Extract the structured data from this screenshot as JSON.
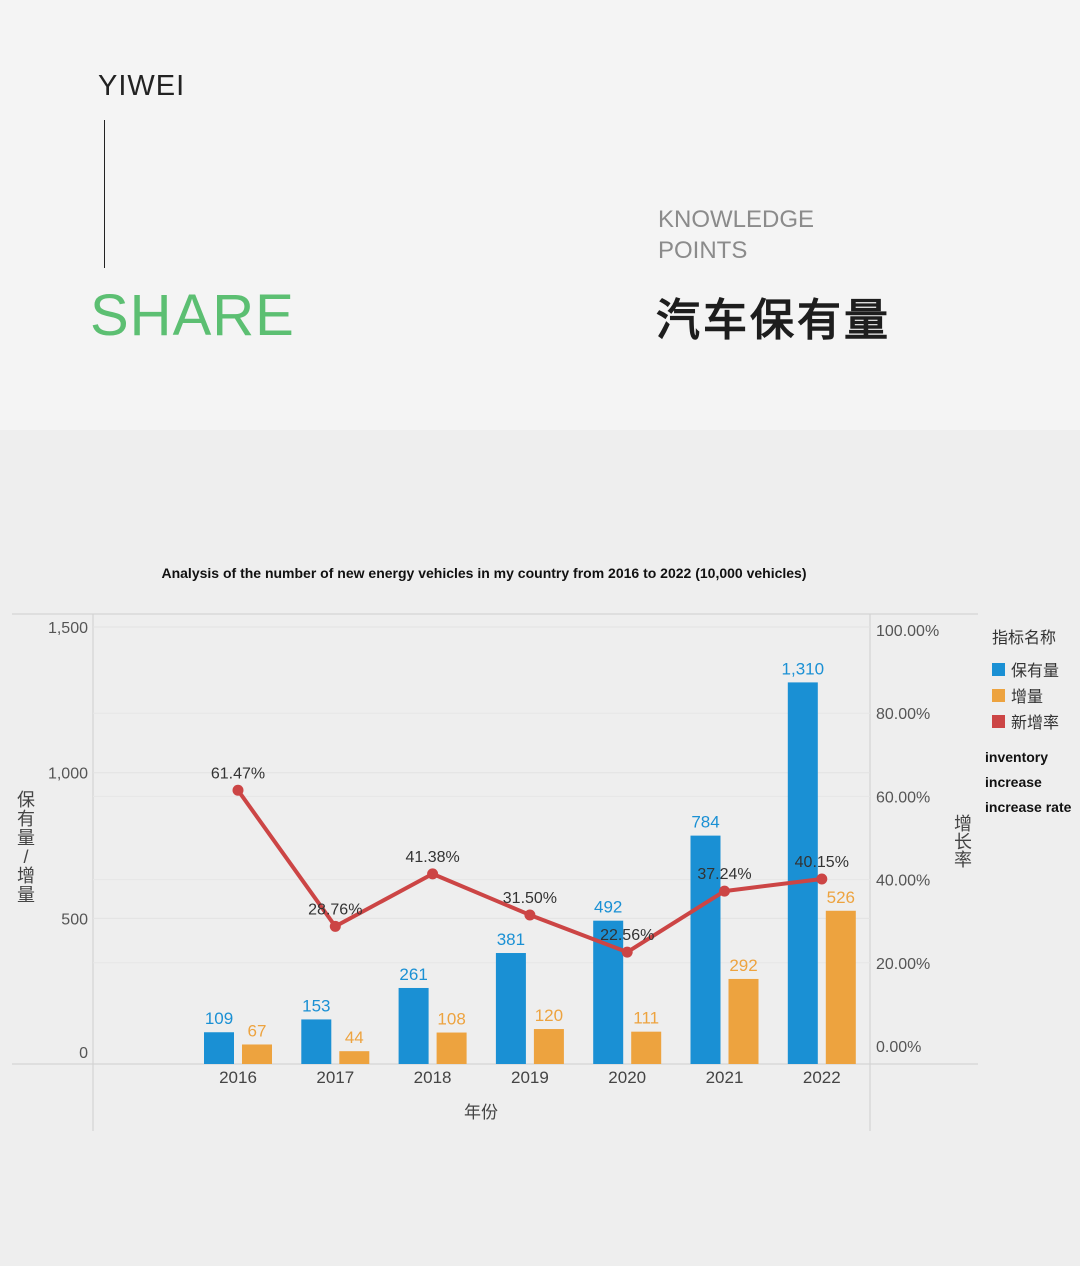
{
  "header": {
    "brand": "YIWEI",
    "share": "SHARE",
    "knowledge": "KNOWLEDGE",
    "points": "POINTS",
    "cn_title": "汽车保有量"
  },
  "colors": {
    "share": "#5cbf72",
    "inventory": "#1a90d4",
    "increase": "#eda33f",
    "rate": "#cc4545"
  },
  "chart_data": {
    "type": "bar",
    "title": "Analysis of the number of new energy vehicles in my country from 2016 to 2022 (10,000 vehicles)",
    "categories": [
      "2016",
      "2017",
      "2018",
      "2019",
      "2020",
      "2021",
      "2022"
    ],
    "xlabel": "年份",
    "ylabel": "保有量/增量",
    "y2label": "增长率",
    "ylim": [
      0,
      1500
    ],
    "y2lim": [
      0,
      100
    ],
    "yticks": [
      "1,500",
      "1,000",
      "500",
      "0"
    ],
    "y2ticks": [
      "100.00%",
      "80.00%",
      "60.00%",
      "40.00%",
      "20.00%",
      "0.00%"
    ],
    "legend_title": "指标名称",
    "series": [
      {
        "name": "保有量",
        "type": "bar",
        "values": [
          109,
          153,
          261,
          381,
          492,
          784,
          1310
        ],
        "labels": [
          "109",
          "153",
          "261",
          "381",
          "492",
          "784",
          "1,310"
        ]
      },
      {
        "name": "增量",
        "type": "bar",
        "values": [
          67,
          44,
          108,
          120,
          111,
          292,
          526
        ],
        "labels": [
          "67",
          "44",
          "108",
          "120",
          "111",
          "292",
          "526"
        ]
      },
      {
        "name": "新增率",
        "type": "line",
        "values": [
          61.47,
          28.76,
          41.38,
          31.5,
          22.56,
          37.24,
          40.15
        ],
        "labels": [
          "61.47%",
          "28.76%",
          "41.38%",
          "31.50%",
          "22.56%",
          "37.24%",
          "40.15%"
        ]
      }
    ],
    "legend_placement": "right",
    "grid": true
  },
  "annotation": {
    "line1": "inventory",
    "line2": "increase",
    "line3": "increase rate"
  }
}
